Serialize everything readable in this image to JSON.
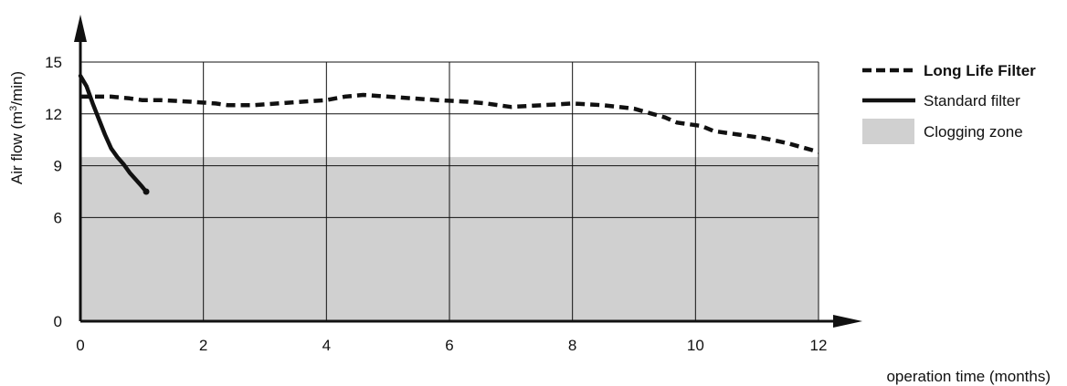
{
  "chart_data": {
    "type": "line",
    "ylabel": "Air flow (m",
    "ylabel_sup": "3",
    "ylabel_tail": "/min)",
    "xlabel": "operation time (months)",
    "xlim": [
      0,
      12
    ],
    "ylim": [
      0,
      15
    ],
    "x_ticks": [
      "0",
      "2",
      "4",
      "6",
      "8",
      "10",
      "12"
    ],
    "y_ticks": [
      "0",
      "6",
      "9",
      "12",
      "15"
    ],
    "grid": true,
    "legend_position": "right",
    "clogging_zone": {
      "name": "Clogging zone",
      "y_max": 9.5,
      "color": "#d0d0d0"
    },
    "series": [
      {
        "name": "Long Life Filter",
        "style": "dashed",
        "color": "#111111",
        "x": [
          0,
          0.5,
          0.8,
          1,
          1.3,
          1.8,
          2.2,
          2.4,
          2.8,
          3.2,
          3.6,
          4,
          4.3,
          4.6,
          5,
          5.4,
          5.8,
          6.3,
          6.6,
          7,
          7.5,
          8,
          8.5,
          9,
          9.2,
          9.5,
          9.7,
          9.9,
          10.1,
          10.3,
          10.7,
          11.1,
          11.5,
          11.8,
          12
        ],
        "y": [
          13.0,
          13.0,
          12.9,
          12.8,
          12.8,
          12.7,
          12.6,
          12.5,
          12.5,
          12.6,
          12.7,
          12.8,
          13.0,
          13.1,
          13.0,
          12.9,
          12.8,
          12.7,
          12.6,
          12.4,
          12.5,
          12.6,
          12.5,
          12.3,
          12.1,
          11.8,
          11.5,
          11.4,
          11.3,
          11.0,
          10.8,
          10.6,
          10.3,
          10.0,
          9.8
        ]
      },
      {
        "name": "Standard filter",
        "style": "solid",
        "color": "#111111",
        "x": [
          0,
          0.1,
          0.2,
          0.3,
          0.4,
          0.5,
          0.6,
          0.7,
          0.8,
          0.9,
          1.0,
          1.07
        ],
        "y": [
          14.2,
          13.6,
          12.6,
          11.7,
          10.8,
          10.0,
          9.5,
          9.1,
          8.6,
          8.2,
          7.8,
          7.5
        ]
      }
    ]
  }
}
